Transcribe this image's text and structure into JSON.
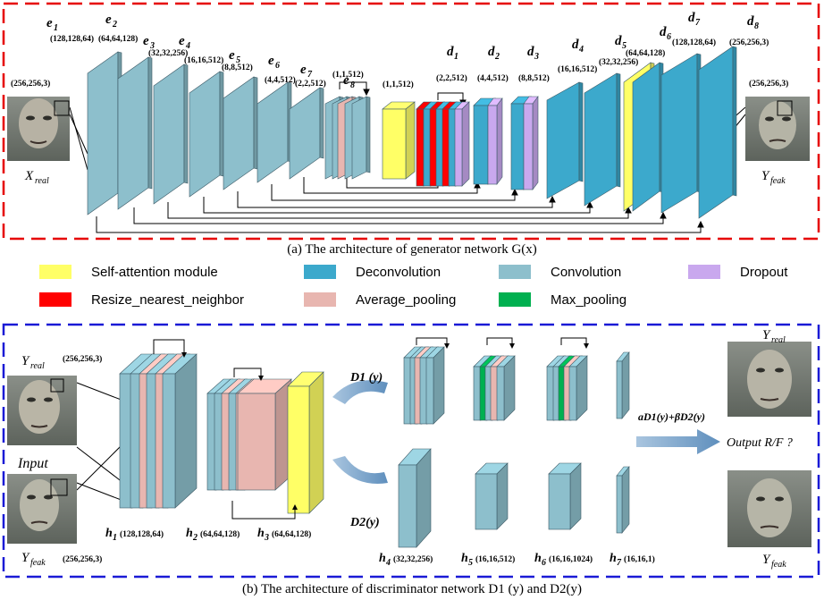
{
  "colors": {
    "self_attention": "#ffff66",
    "deconvolution": "#3ca9cc",
    "convolution": "#8dbfcc",
    "dropout": "#c9a8ee",
    "resize": "#ff0000",
    "avg_pool": "#e8b6b0",
    "max_pool": "#00b050",
    "frame_top": "#e60000",
    "frame_bottom": "#1a1ad6"
  },
  "generator": {
    "caption": "(a) The architecture of generator network G(x)",
    "input_label": "X",
    "input_sub": "real",
    "input_dim": "(256,256,3)",
    "output_label": "Y",
    "output_sub": "feak",
    "output_dim": "(256,256,3)",
    "encoder": [
      {
        "name": "e",
        "sub": "1",
        "dim": "(128,128,64)"
      },
      {
        "name": "e",
        "sub": "2",
        "dim": "(64,64,128)"
      },
      {
        "name": "e",
        "sub": "3",
        "dim": "(32,32,256)"
      },
      {
        "name": "e",
        "sub": "4",
        "dim": "(16,16,512)"
      },
      {
        "name": "e",
        "sub": "5",
        "dim": "(8,8,512)"
      },
      {
        "name": "e",
        "sub": "6",
        "dim": "(4,4,512)"
      },
      {
        "name": "e",
        "sub": "7",
        "dim": "(2,2,512)"
      },
      {
        "name": "e",
        "sub": "8",
        "dim": "(1,1,512)"
      }
    ],
    "attention_dim": "(1,1,512)",
    "decoder": [
      {
        "name": "d",
        "sub": "1",
        "dim": "(2,2,512)"
      },
      {
        "name": "d",
        "sub": "2",
        "dim": "(4,4,512)"
      },
      {
        "name": "d",
        "sub": "3",
        "dim": "(8,8,512)"
      },
      {
        "name": "d",
        "sub": "4",
        "dim": "(16,16,512)"
      },
      {
        "name": "d",
        "sub": "5",
        "dim": "(32,32,256)"
      },
      {
        "name": "d",
        "sub": "6",
        "dim": "(64,64,128)"
      },
      {
        "name": "d",
        "sub": "7",
        "dim": "(128,128,64)"
      },
      {
        "name": "d",
        "sub": "8",
        "dim": "(256,256,3)"
      }
    ]
  },
  "legend": [
    {
      "key": "self_attention",
      "label": "Self-attention module"
    },
    {
      "key": "deconvolution",
      "label": "Deconvolution"
    },
    {
      "key": "convolution",
      "label": "Convolution"
    },
    {
      "key": "dropout",
      "label": "Dropout"
    },
    {
      "key": "resize",
      "label": "Resize_nearest_neighbor"
    },
    {
      "key": "avg_pool",
      "label": "Average_pooling"
    },
    {
      "key": "max_pool",
      "label": "Max_pooling"
    }
  ],
  "discriminator": {
    "caption": "(b) The architecture of discriminator network D1 (y) and D2(y)",
    "real_label": "Y",
    "real_sub": "real",
    "real_dim": "(256,256,3)",
    "fake_label": "Y",
    "fake_sub": "feak",
    "fake_dim": "(256,256,3)",
    "input_label": "Input",
    "d1_label": "D1 (y)",
    "d2_label": "D2(y)",
    "combine_label": "aD1(y)+βD2(y)",
    "output_label": "Output R/F ?",
    "right_top_label": "Y",
    "right_top_sub": "real",
    "right_bottom_label": "Y",
    "right_bottom_sub": "feak",
    "layers": [
      {
        "name": "h",
        "sub": "1",
        "dim": "(128,128,64)"
      },
      {
        "name": "h",
        "sub": "2",
        "dim": "(64,64,128)"
      },
      {
        "name": "h",
        "sub": "3",
        "dim": "(64,64,128)"
      },
      {
        "name": "h",
        "sub": "4",
        "dim": "(32,32,256)"
      },
      {
        "name": "h",
        "sub": "5",
        "dim": "(16,16,512)"
      },
      {
        "name": "h",
        "sub": "6",
        "dim": "(16,16,1024)"
      },
      {
        "name": "h",
        "sub": "7",
        "dim": "(16,16,1)"
      }
    ]
  }
}
